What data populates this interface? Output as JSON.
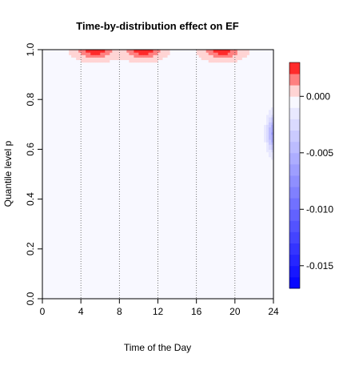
{
  "chart_data": {
    "type": "heatmap",
    "title": "Time-by-distribution effect on EF",
    "xlabel": "Time of the Day",
    "ylabel": "Quantile level p",
    "xlim": [
      0,
      24
    ],
    "ylim": [
      0,
      1
    ],
    "x_ticks": [
      "0",
      "4",
      "8",
      "12",
      "16",
      "20",
      "24"
    ],
    "y_ticks": [
      "0.0",
      "0.2",
      "0.4",
      "0.6",
      "0.8",
      "1.0"
    ],
    "grid": "vertical dotted lines at 4, 8, 12, 16, 20",
    "baseline_value": -0.0003,
    "features": [
      {
        "x": 5.5,
        "y": 1.0,
        "sx": 1.3,
        "sy": 0.025,
        "value": 0.003
      },
      {
        "x": 10.5,
        "y": 1.0,
        "sx": 1.3,
        "sy": 0.025,
        "value": 0.003
      },
      {
        "x": 18.7,
        "y": 1.0,
        "sx": 1.3,
        "sy": 0.025,
        "value": 0.003
      },
      {
        "x": 24.0,
        "y": 0.665,
        "sx": 0.45,
        "sy": 0.05,
        "value": -0.006
      }
    ],
    "colorbar": {
      "range": [
        -0.017,
        0.003
      ],
      "ticks": [
        "0.000",
        "-0.005",
        "-0.010",
        "-0.015"
      ],
      "tick_values": [
        0.0,
        -0.005,
        -0.01,
        -0.015
      ],
      "levels": 20,
      "low_color": "#0000ff",
      "mid_color": "#ffffff",
      "high_color": "#ff0000",
      "position": "right"
    }
  }
}
